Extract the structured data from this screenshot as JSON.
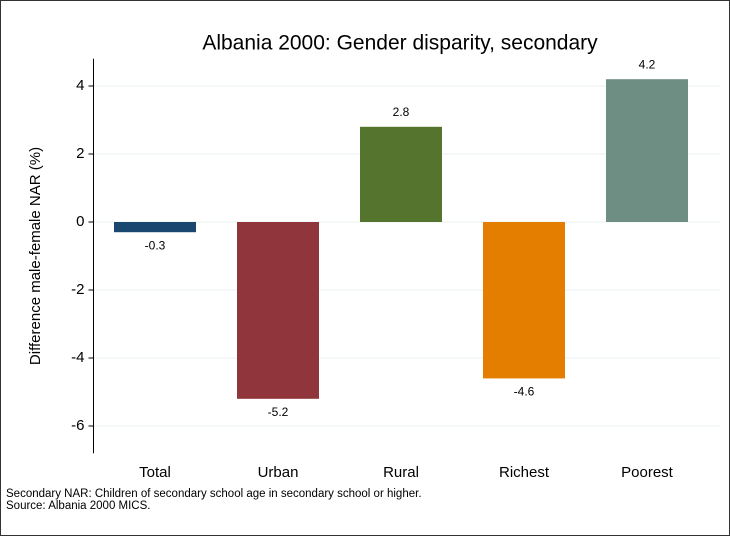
{
  "chart_data": {
    "type": "bar",
    "title": "Albania 2000: Gender disparity, secondary",
    "y_label": "Difference male-female NAR (%)",
    "categories": [
      "Total",
      "Urban",
      "Rural",
      "Richest",
      "Poorest"
    ],
    "values": [
      -0.3,
      -5.2,
      2.8,
      -4.6,
      4.2
    ],
    "colors": [
      "#1a476f",
      "#90353b",
      "#55752f",
      "#e37e00",
      "#6e8e84"
    ],
    "ylim": [
      -6.8,
      4.8
    ],
    "yticks": [
      -6,
      -4,
      -2,
      0,
      2,
      4
    ],
    "grid": true,
    "notes": [
      "Secondary NAR: Children of secondary school age in secondary school or higher.",
      "Source: Albania 2000 MICS."
    ]
  }
}
